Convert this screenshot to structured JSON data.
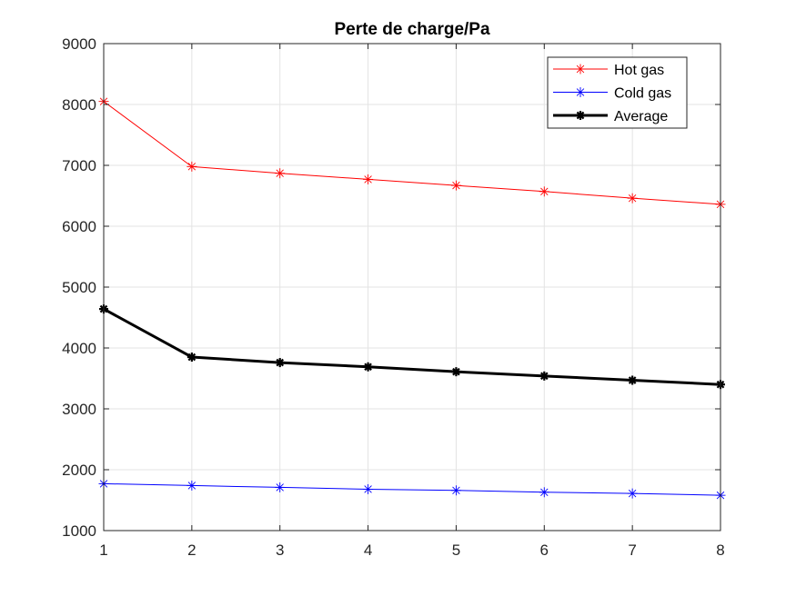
{
  "chart_data": {
    "type": "line",
    "title": "Perte de charge/Pa",
    "xlabel": "",
    "ylabel": "",
    "x": [
      1,
      2,
      3,
      4,
      5,
      6,
      7,
      8
    ],
    "xlim": [
      1,
      8
    ],
    "ylim": [
      1000,
      9000
    ],
    "xticks": [
      1,
      2,
      3,
      4,
      5,
      6,
      7,
      8
    ],
    "yticks": [
      1000,
      2000,
      3000,
      4000,
      5000,
      6000,
      7000,
      8000,
      9000
    ],
    "xtick_labels": [
      "1",
      "2",
      "3",
      "4",
      "5",
      "6",
      "7",
      "8"
    ],
    "ytick_labels": [
      "1000",
      "2000",
      "3000",
      "4000",
      "5000",
      "6000",
      "7000",
      "8000",
      "9000"
    ],
    "grid": true,
    "legend_position": "top-right",
    "series": [
      {
        "name": "Hot gas",
        "color": "#ff0000",
        "marker": "asterisk",
        "line_width": 1,
        "values": [
          8050,
          6980,
          6870,
          6770,
          6670,
          6570,
          6460,
          6360
        ]
      },
      {
        "name": "Cold gas",
        "color": "#0000ff",
        "marker": "asterisk",
        "line_width": 1,
        "values": [
          1770,
          1740,
          1710,
          1680,
          1660,
          1630,
          1610,
          1580
        ]
      },
      {
        "name": "Average",
        "color": "#000000",
        "marker": "asterisk",
        "line_width": 3,
        "values": [
          4640,
          3850,
          3760,
          3690,
          3610,
          3540,
          3470,
          3400
        ]
      }
    ]
  }
}
